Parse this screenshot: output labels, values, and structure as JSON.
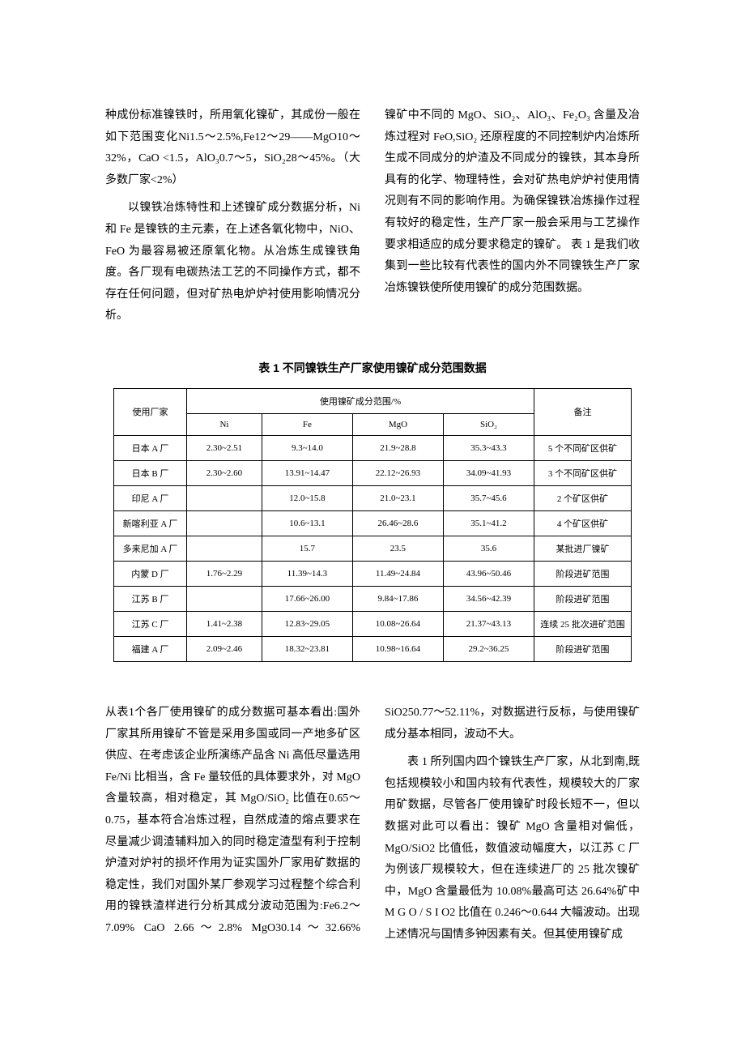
{
  "top": {
    "p1": "种成份标准镍铁时，所用氧化镍矿，其成份一般在如下范围变化Ni1.5～2.5%,Fe12～29——MgO10～32%，CaO <1.5，AlO₃0.7～5，SiO₂28～45%。（大多数厂家<2%）",
    "p2": "以镍铁冶炼特性和上述镍矿成分数据分析，Ni 和 Fe 是镍铁的主元素，在上述各氧化物中，NiO、FeO 为最容易被还原氧化物。从冶炼生成镍铁角度。各厂现有电碳热法工艺的不同操作方式，都不存在任何问题，但对矿热电炉炉衬使用影响情况分析。",
    "p3": "镍矿中不同的 MgO、SiO₂、AlO₃、Fe₂O₃ 含量及冶炼过程对 FeO,SiO₂ 还原程度的不同控制炉内冶炼所生成不同成分的炉渣及不同成分的镍铁，其本身所具有的化学、物理特性，会对矿热电炉炉衬使用情况则有不同的影响作用。为确保镍铁冶炼操作过程有较好的稳定性，生产厂家一般会采用与工艺操作要求相适应的成分要求稳定的镍矿。 表 1 是我们收集到一些比较有代表性的国内外不同镍铁生产厂家冶炼镍铁使所使用镍矿的成分范围数据。"
  },
  "table": {
    "caption": "表 1   不同镍铁生产厂家使用镍矿成分范围数据",
    "h_factory": "使用厂家",
    "h_range": "使用镍矿成分范围/%",
    "h_note": "备注",
    "h_ni": "Ni",
    "h_fe": "Fe",
    "h_mgo": "MgO",
    "h_sio2": "SiO₂",
    "rows": [
      {
        "f": "日本 A 厂",
        "ni": "2.30~2.51",
        "fe": "9.3~14.0",
        "mgo": "21.9~28.8",
        "sio2": "35.3~43.3",
        "note": "5 个不同矿区供矿"
      },
      {
        "f": "日本 B 厂",
        "ni": "2.30~2.60",
        "fe": "13.91~14.47",
        "mgo": "22.12~26.93",
        "sio2": "34.09~41.93",
        "note": "3 个不同矿区供矿"
      },
      {
        "f": "印尼 A 厂",
        "ni": "",
        "fe": "12.0~15.8",
        "mgo": "21.0~23.1",
        "sio2": "35.7~45.6",
        "note": "2 个矿区供矿"
      },
      {
        "f": "新喀利亚 A 厂",
        "ni": "",
        "fe": "10.6~13.1",
        "mgo": "26.46~28.6",
        "sio2": "35.1~41.2",
        "note": "4 个矿区供矿"
      },
      {
        "f": "多来尼加 A 厂",
        "ni": "",
        "fe": "15.7",
        "mgo": "23.5",
        "sio2": "35.6",
        "note": "某批进厂镍矿"
      },
      {
        "f": "内蒙 D 厂",
        "ni": "1.76~2.29",
        "fe": "11.39~14.3",
        "mgo": "11.49~24.84",
        "sio2": "43.96~50.46",
        "note": "阶段进矿范围"
      },
      {
        "f": "江苏 B 厂",
        "ni": "",
        "fe": "17.66~26.00",
        "mgo": "9.84~17.86",
        "sio2": "34.56~42.39",
        "note": "阶段进矿范围"
      },
      {
        "f": "江苏 C 厂",
        "ni": "1.41~2.38",
        "fe": "12.83~29.05",
        "mgo": "10.08~26.64",
        "sio2": "21.37~43.13",
        "note": "连续 25 批次进矿范围"
      },
      {
        "f": "福建 A 厂",
        "ni": "2.09~2.46",
        "fe": "18.32~23.81",
        "mgo": "10.98~16.64",
        "sio2": "29.2~36.25",
        "note": "阶段进矿范围"
      }
    ]
  },
  "bottom": {
    "p1": "从表1个各厂使用镍矿的成分数据可基本看出:国外厂家其所用镍矿不管是采用多国或同一产地多矿区供应、在考虑该企业所演练产品含 Ni 高低尽量选用 Fe/Ni 比相当，含 Fe 量较低的具体要求外，对 MgO 含量较高，相对稳定，其 MgO/SiO₂ 比值在0.65～0.75，基本符合冶炼过程，自然成渣的熔点要求在尽量减少调渣辅料加入的同时稳定渣型有利于控制炉渣对炉衬的损坏作用为证实国外厂家用矿数据的稳定性，我们对国外某厂参观学习过程整个综合利用的镍铁渣样进行分析其成分波动范围为:Fe6.2～7.09%   CaO 2.66～2.8% MgO30.14～32.66% SiO250.77～52.11%，对数据进行反标，与使用镍矿成分基本相同，波动不大。",
    "p2": "表 1 所列国内四个镍铁生产厂家，从北到南,既包括规模较小和国内较有代表性，规模较大的厂家用矿数据，尽管各厂使用镍矿时段长短不一，但以数据对此可以看出：镍矿 MgO 含量相对偏低，MgO/SiO2 比值低，数值波动幅度大，以江苏 C 厂为例该厂规模较大，但在连续进厂的 25 批次镍矿中，MgO 含量最低为 10.08%最高可达 26.64%矿中M G O / S I O2 比值在 0.246～0.644 大幅波动。出现上述情况与国情多钟因素有关。但其使用镍矿成"
  }
}
